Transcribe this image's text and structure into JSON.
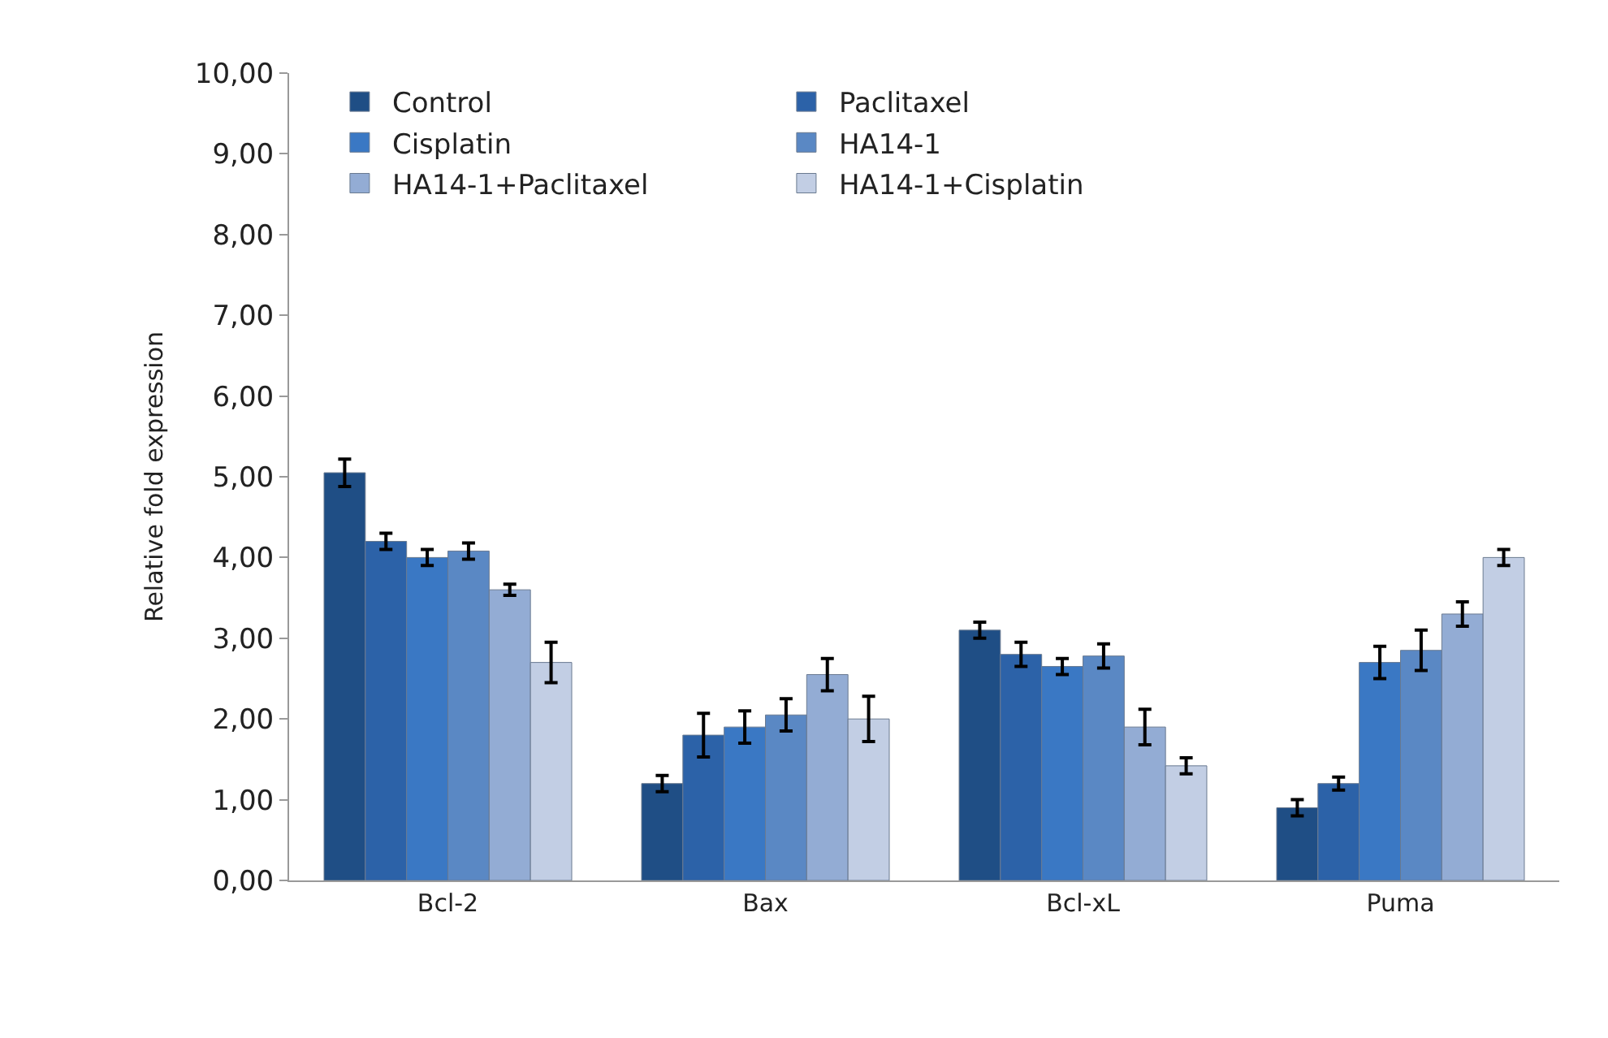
{
  "chart_data": {
    "type": "bar",
    "ylabel": "Relative fold expression",
    "categories": [
      "Bcl-2",
      "Bax",
      "Bcl-xL",
      "Puma"
    ],
    "series": [
      {
        "name": "Control",
        "color": "#1f4e85",
        "values": [
          5.05,
          1.2,
          3.1,
          0.9
        ],
        "errors": [
          0.17,
          0.1,
          0.1,
          0.1
        ]
      },
      {
        "name": "Paclitaxel",
        "color": "#2c62a8",
        "values": [
          4.2,
          1.8,
          2.8,
          1.2
        ],
        "errors": [
          0.1,
          0.27,
          0.15,
          0.08
        ]
      },
      {
        "name": "Cisplatin",
        "color": "#3a78c4",
        "values": [
          4.0,
          1.9,
          2.65,
          2.7
        ],
        "errors": [
          0.1,
          0.2,
          0.1,
          0.2
        ]
      },
      {
        "name": "HA14-1",
        "color": "#5a88c4",
        "values": [
          4.08,
          2.05,
          2.78,
          2.85
        ],
        "errors": [
          0.1,
          0.2,
          0.15,
          0.25
        ]
      },
      {
        "name": "HA14-1+Paclitaxel",
        "color": "#93acd4",
        "values": [
          3.6,
          2.55,
          1.9,
          3.3
        ],
        "errors": [
          0.07,
          0.2,
          0.22,
          0.15
        ]
      },
      {
        "name": "HA14-1+Cisplatin",
        "color": "#c2cee4",
        "values": [
          2.7,
          2.0,
          1.42,
          4.0
        ],
        "errors": [
          0.25,
          0.28,
          0.1,
          0.1
        ]
      }
    ],
    "ylim": [
      0,
      10
    ],
    "yticks": [
      {
        "value": 0,
        "label": "0,00"
      },
      {
        "value": 1,
        "label": "1,00"
      },
      {
        "value": 2,
        "label": "2,00"
      },
      {
        "value": 3,
        "label": "3,00"
      },
      {
        "value": 4,
        "label": "4,00"
      },
      {
        "value": 5,
        "label": "5,00"
      },
      {
        "value": 6,
        "label": "6,00"
      },
      {
        "value": 7,
        "label": "7,00"
      },
      {
        "value": 8,
        "label": "8,00"
      },
      {
        "value": 9,
        "label": "9,00"
      },
      {
        "value": 10,
        "label": "10,00"
      }
    ],
    "legend": "top",
    "grid": false
  }
}
